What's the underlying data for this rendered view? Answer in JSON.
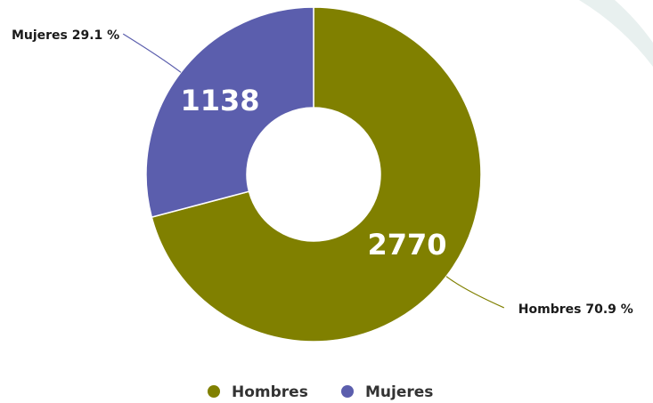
{
  "chart_data": {
    "type": "donut",
    "categories": [
      "Hombres",
      "Mujeres"
    ],
    "values": [
      2770,
      1138
    ],
    "colors": [
      "#808000",
      "#5b5ead"
    ],
    "outer_labels": [
      "Hombres 70.9 %",
      "Mujeres 29.1 %"
    ],
    "legend": "bottom"
  }
}
